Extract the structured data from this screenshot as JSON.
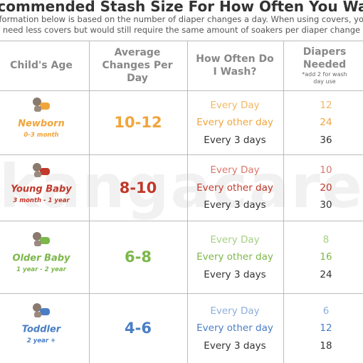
{
  "header": {
    "title": "Recommended Stash Size For How Often You Wash",
    "subtitle": [
      "The information below is based on the number of diaper changes a day. When using covers, you may",
      "need less covers but would still require the same amount of soakers per diaper change"
    ]
  },
  "watermark": "kangacare",
  "table": {
    "columns": [
      "Child's Age",
      "Average Changes Per Day",
      "How Often Do I Wash?",
      "Diapers Needed"
    ],
    "note": "*add 2 for wash day use",
    "rows": [
      {
        "name": "Newborn",
        "range": "0-3 month",
        "changes": "10-12",
        "wash": [
          {
            "label": "Every Day",
            "diapers": 12
          },
          {
            "label": "Every other day",
            "diapers": 24
          },
          {
            "label": "Every 3 days",
            "diapers": 36
          }
        ]
      },
      {
        "name": "Young Baby",
        "range": "3 month - 1 year",
        "changes": "8-10",
        "wash": [
          {
            "label": "Every Day",
            "diapers": 10
          },
          {
            "label": "Every other day",
            "diapers": 20
          },
          {
            "label": "Every 3 days",
            "diapers": 30
          }
        ]
      },
      {
        "name": "Older Baby",
        "range": "1 year - 2 year",
        "changes": "6-8",
        "wash": [
          {
            "label": "Every Day",
            "diapers": 8
          },
          {
            "label": "Every other day",
            "diapers": 16
          },
          {
            "label": "Every 3 days",
            "diapers": 24
          }
        ]
      },
      {
        "name": "Toddler",
        "range": "2 year +",
        "changes": "4-6",
        "wash": [
          {
            "label": "Every Day",
            "diapers": 6
          },
          {
            "label": "Every other day",
            "diapers": 12
          },
          {
            "label": "Every 3 days",
            "diapers": 18
          }
        ]
      }
    ]
  }
}
